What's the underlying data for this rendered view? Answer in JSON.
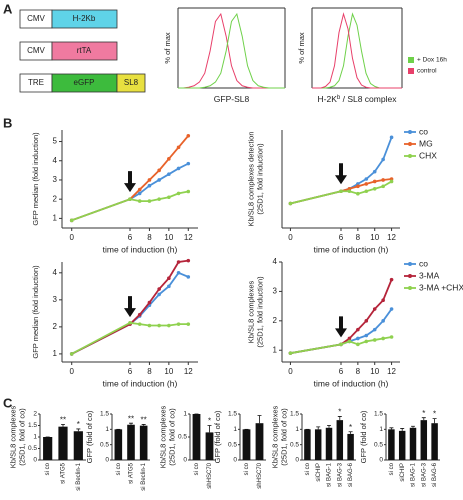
{
  "panel_labels": [
    "A",
    "B",
    "C"
  ],
  "constructs": [
    {
      "promoter": "CMV",
      "gene": "H-2Kb"
    },
    {
      "promoter": "CMV",
      "gene": "rtTA"
    },
    {
      "promoter": "TRE",
      "gene": "eGFP",
      "tag": "SL8"
    }
  ],
  "chart_data": [
    {
      "type": "histogram-curve",
      "ylabel": [
        "% of max"
      ],
      "xlabel": [
        "GFP-SL8"
      ],
      "ylim": [
        0,
        100
      ],
      "legend": false,
      "series": [
        {
          "color": "#e8406a",
          "values": [
            0,
            0,
            1,
            3,
            8,
            20,
            50,
            90,
            100,
            70,
            30,
            10,
            3,
            1,
            0,
            0,
            0,
            0,
            0,
            0,
            0
          ]
        },
        {
          "color": "#6fd14a",
          "values": [
            0,
            0,
            0,
            0,
            0,
            1,
            3,
            8,
            20,
            50,
            90,
            100,
            70,
            30,
            10,
            3,
            1,
            0,
            0,
            0,
            0
          ]
        }
      ]
    },
    {
      "type": "histogram-curve",
      "ylabel": [
        "% of max"
      ],
      "xlabel": [
        "H-2K",
        "b",
        " / SL8 complex"
      ],
      "ylim": [
        0,
        100
      ],
      "legend": true,
      "series": [
        {
          "name": "+ Dox 16h",
          "color": "#6fd14a",
          "values": [
            0,
            0,
            0,
            0,
            1,
            3,
            10,
            30,
            70,
            100,
            85,
            50,
            20,
            6,
            2,
            0,
            0,
            0,
            0,
            0,
            0
          ]
        },
        {
          "name": "control",
          "color": "#e8406a",
          "values": [
            0,
            0,
            0,
            2,
            8,
            30,
            75,
            100,
            80,
            40,
            14,
            4,
            1,
            0,
            0,
            0,
            0,
            0,
            0,
            0,
            0
          ]
        }
      ]
    },
    {
      "type": "line",
      "ylabel": [
        "GFP median (fold induction)"
      ],
      "xlabel": "time of induction (h)",
      "x": [
        0,
        6,
        7,
        8,
        9,
        10,
        11,
        12
      ],
      "xlim": [
        -1,
        13
      ],
      "xticks": [
        0,
        6,
        8,
        10,
        12
      ],
      "ylim": [
        0.5,
        5.6
      ],
      "yticks": [
        1,
        2,
        3,
        4,
        5
      ],
      "legend": false,
      "series": [
        {
          "name": "co",
          "color": "#4a90d9",
          "values": [
            0.9,
            2.0,
            2.3,
            2.7,
            3.0,
            3.3,
            3.6,
            3.85
          ]
        },
        {
          "name": "MG",
          "color": "#e8622a",
          "values": [
            0.9,
            2.0,
            2.5,
            3.0,
            3.5,
            4.1,
            4.7,
            5.3
          ]
        },
        {
          "name": "CHX",
          "color": "#8fd14f",
          "values": [
            0.9,
            2.0,
            1.9,
            1.9,
            2.0,
            2.1,
            2.3,
            2.4
          ]
        }
      ]
    },
    {
      "type": "line",
      "ylabel": [
        "Kb/SL8 complexes detection",
        "(25D1, fold induction)"
      ],
      "xlabel": "time of induction (h)",
      "x": [
        0,
        6,
        7,
        8,
        9,
        10,
        11,
        12
      ],
      "xlim": [
        -1,
        13
      ],
      "xticks": [
        0,
        6,
        8,
        10,
        12
      ],
      "ylim": [
        0.5,
        2.5
      ],
      "legend": true,
      "series": [
        {
          "name": "co",
          "color": "#4a90d9",
          "values": [
            1.0,
            1.25,
            1.3,
            1.4,
            1.5,
            1.65,
            1.9,
            2.35
          ]
        },
        {
          "name": "MG",
          "color": "#e8622a",
          "values": [
            1.0,
            1.25,
            1.3,
            1.35,
            1.4,
            1.45,
            1.48,
            1.5
          ]
        },
        {
          "name": "CHX",
          "color": "#8fd14f",
          "values": [
            1.0,
            1.25,
            1.25,
            1.2,
            1.25,
            1.3,
            1.35,
            1.45
          ]
        }
      ]
    },
    {
      "type": "line",
      "ylabel": [
        "GFP median (fold induction)"
      ],
      "xlabel": "time of induction (h)",
      "x": [
        0,
        6,
        7,
        8,
        9,
        10,
        11,
        12
      ],
      "xlim": [
        -1,
        13
      ],
      "xticks": [
        0,
        6,
        8,
        10,
        12
      ],
      "ylim": [
        0.7,
        4.4
      ],
      "yticks": [
        1,
        2,
        3,
        4
      ],
      "legend": false,
      "series": [
        {
          "name": "co",
          "color": "#4a90d9",
          "values": [
            1.0,
            2.1,
            2.4,
            2.8,
            3.2,
            3.5,
            4.0,
            3.85
          ]
        },
        {
          "name": "3-MA",
          "color": "#b5243a",
          "values": [
            1.0,
            2.1,
            2.45,
            2.9,
            3.4,
            3.8,
            4.4,
            4.45
          ]
        },
        {
          "name": "3-MA +CHX",
          "color": "#8fd14f",
          "values": [
            1.0,
            2.15,
            2.1,
            2.05,
            2.05,
            2.05,
            2.1,
            2.1
          ]
        }
      ]
    },
    {
      "type": "line",
      "ylabel": [
        "Kb/SL8 complexes",
        "(25D1, fold induction)"
      ],
      "xlabel": "time of induction (h)",
      "x": [
        0,
        6,
        7,
        8,
        9,
        10,
        11,
        12
      ],
      "xlim": [
        -1,
        13
      ],
      "xticks": [
        0,
        6,
        8,
        10,
        12
      ],
      "ylim": [
        0.6,
        4
      ],
      "yticks": [
        1,
        2,
        3,
        4
      ],
      "legend": true,
      "series": [
        {
          "name": "co",
          "color": "#4a90d9",
          "values": [
            0.9,
            1.2,
            1.3,
            1.4,
            1.5,
            1.7,
            2.0,
            2.4
          ]
        },
        {
          "name": "3-MA",
          "color": "#b5243a",
          "values": [
            0.9,
            1.2,
            1.4,
            1.7,
            2.0,
            2.4,
            2.7,
            3.4
          ]
        },
        {
          "name": "3-MA +CHX",
          "color": "#8fd14f",
          "values": [
            0.9,
            1.2,
            1.3,
            1.2,
            1.3,
            1.35,
            1.4,
            1.45
          ]
        }
      ]
    },
    {
      "type": "bar",
      "ylabel": [
        "Kb/SL8 complexes",
        "(25D1, fold of co)"
      ],
      "categories": [
        "si co",
        "si ATG5",
        "si Beclin-1"
      ],
      "values": [
        1.0,
        1.45,
        1.25
      ],
      "errors": [
        0,
        0.1,
        0.1
      ],
      "significance": [
        null,
        "**",
        "*"
      ],
      "ylim": [
        0,
        2
      ],
      "yticks": [
        0,
        0.5,
        1,
        1.5,
        2
      ],
      "color": "#111111"
    },
    {
      "type": "bar",
      "ylabel": [
        "GFP (fold of co)"
      ],
      "categories": [
        "si co",
        "si ATG5",
        "si Beclin-1"
      ],
      "values": [
        1.0,
        1.15,
        1.12
      ],
      "errors": [
        0,
        0.05,
        0.04
      ],
      "significance": [
        null,
        "**",
        "**"
      ],
      "ylim": [
        0,
        1.5
      ],
      "yticks": [
        0,
        0.5,
        1,
        1.5
      ],
      "color": "#111111"
    },
    {
      "type": "bar",
      "ylabel": [
        "Kb/SL8 complexes",
        "(25D1, fold of co)"
      ],
      "categories": [
        "si co",
        "shHSC70"
      ],
      "values": [
        1.0,
        0.6
      ],
      "errors": [
        0,
        0.15
      ],
      "significance": [
        null,
        "*"
      ],
      "ylim": [
        0,
        1
      ],
      "yticks": [
        0,
        0.5,
        1
      ],
      "color": "#111111"
    },
    {
      "type": "bar",
      "ylabel": [
        "GFP (fold of co)"
      ],
      "categories": [
        "si co",
        "shHSC70"
      ],
      "values": [
        1.0,
        1.2
      ],
      "errors": [
        0,
        0.25
      ],
      "significance": [
        null,
        null
      ],
      "ylim": [
        0,
        1.5
      ],
      "yticks": [
        0,
        0.5,
        1,
        1.5
      ],
      "color": "#111111"
    },
    {
      "type": "bar",
      "ylabel": [
        "Kb/SL8 complexes",
        "(25D1, fold of co)"
      ],
      "categories": [
        "si co",
        "siCHIP",
        "si BAG-1",
        "si BAG-3",
        "si BAG-6"
      ],
      "values": [
        1.0,
        1.0,
        1.05,
        1.3,
        0.85
      ],
      "errors": [
        0,
        0.08,
        0.08,
        0.12,
        0.07
      ],
      "significance": [
        null,
        null,
        null,
        "*",
        "*"
      ],
      "ylim": [
        0,
        1.5
      ],
      "yticks": [
        0,
        0.5,
        1,
        1.5
      ],
      "color": "#111111"
    },
    {
      "type": "bar",
      "ylabel": [
        "GFP (fold of co)"
      ],
      "categories": [
        "si co",
        "siCHIP",
        "si BAG-1",
        "si BAG-3",
        "si BAG-6"
      ],
      "values": [
        1.0,
        0.95,
        1.05,
        1.3,
        1.2
      ],
      "errors": [
        0.05,
        0.08,
        0.05,
        0.08,
        0.15
      ],
      "significance": [
        null,
        null,
        null,
        "*",
        "*"
      ],
      "ylim": [
        0,
        1.5
      ],
      "yticks": [
        0,
        0.5,
        1,
        1.5
      ],
      "color": "#111111"
    }
  ]
}
